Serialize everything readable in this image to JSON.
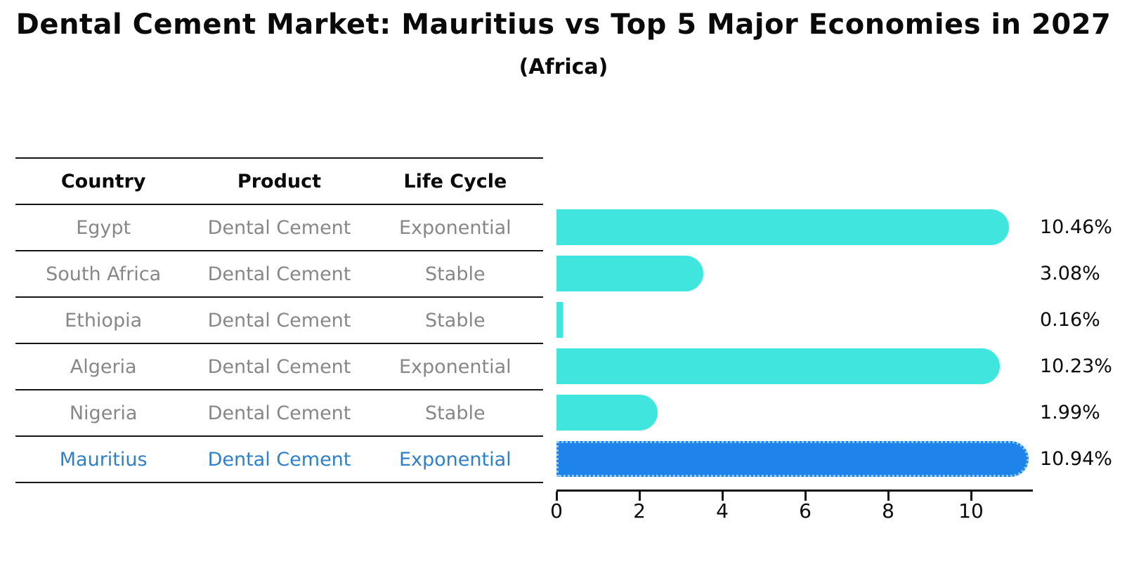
{
  "header": {
    "title": "Dental Cement Market: Mauritius vs Top 5 Major Economies in 2027",
    "subtitle": "(Africa)"
  },
  "table": {
    "headers": [
      "Country",
      "Product",
      "Life Cycle"
    ],
    "rows": [
      {
        "country": "Egypt",
        "product": "Dental Cement",
        "life_cycle": "Exponential",
        "highlighted": false
      },
      {
        "country": "South Africa",
        "product": "Dental Cement",
        "life_cycle": "Stable",
        "highlighted": false
      },
      {
        "country": "Ethiopia",
        "product": "Dental Cement",
        "life_cycle": "Stable",
        "highlighted": false
      },
      {
        "country": "Algeria",
        "product": "Dental Cement",
        "life_cycle": "Exponential",
        "highlighted": false
      },
      {
        "country": "Nigeria",
        "product": "Dental Cement",
        "life_cycle": "Stable",
        "highlighted": false
      },
      {
        "country": "Mauritius",
        "product": "Dental Cement",
        "life_cycle": "Exponential",
        "highlighted": true
      }
    ]
  },
  "chart_data": {
    "type": "bar",
    "orientation": "horizontal",
    "title": "Dental Cement Market: Mauritius vs Top 5 Major Economies in 2027",
    "subtitle": "(Africa)",
    "categories": [
      "Egypt",
      "South Africa",
      "Ethiopia",
      "Algeria",
      "Nigeria",
      "Mauritius"
    ],
    "values": [
      10.46,
      3.08,
      0.16,
      10.23,
      1.99,
      10.94
    ],
    "value_labels": [
      "10.46%",
      "3.08%",
      "0.16%",
      "10.23%",
      "1.99%",
      "10.94%"
    ],
    "xlabel": "",
    "ylabel": "",
    "xlim": [
      0,
      11.5
    ],
    "xticks": [
      0,
      2,
      4,
      6,
      8,
      10
    ],
    "grid": false,
    "legend": false,
    "highlight_index": 5,
    "colors": {
      "bar": "#40e6de",
      "highlight_bar": "#1e83eb",
      "highlight_edge": "#8fcbf5",
      "highlight_text": "#2e80c8",
      "row_text": "#878787",
      "axis": "#141414",
      "background": "#ffffff"
    }
  }
}
